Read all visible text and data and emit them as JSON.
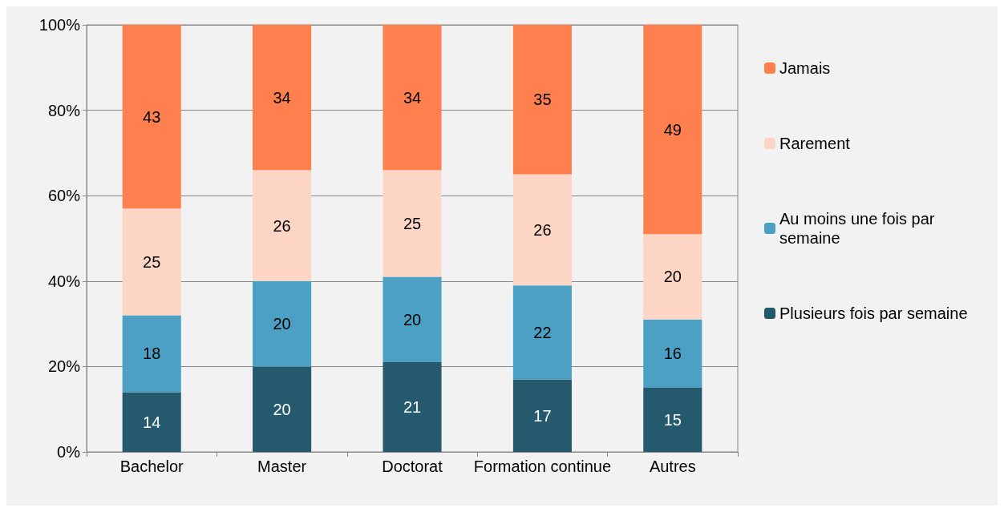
{
  "chart_data": {
    "type": "bar",
    "stacked": true,
    "categories": [
      "Bachelor",
      "Master",
      "Doctorat",
      "Formation continue",
      "Autres"
    ],
    "series": [
      {
        "name": "Plusieurs fois par semaine",
        "color": "#255a6e",
        "values": [
          14,
          20,
          21,
          17,
          15
        ]
      },
      {
        "name": "Au moins une fois par semaine",
        "color": "#4ba0c4",
        "values": [
          18,
          20,
          20,
          22,
          16
        ]
      },
      {
        "name": "Rarement",
        "color": "#fdd5c4",
        "values": [
          25,
          26,
          25,
          26,
          20
        ]
      },
      {
        "name": "Jamais",
        "color": "#fd804e",
        "values": [
          43,
          34,
          34,
          35,
          49
        ]
      }
    ],
    "ylim": [
      0,
      100
    ],
    "yticks": [
      {
        "value": 0,
        "label": "0%"
      },
      {
        "value": 20,
        "label": "20%"
      },
      {
        "value": 40,
        "label": "40%"
      },
      {
        "value": 60,
        "label": "60%"
      },
      {
        "value": 80,
        "label": "80%"
      },
      {
        "value": 100,
        "label": "100%"
      }
    ],
    "grid": "y",
    "legend": "right",
    "data_labels": true
  }
}
